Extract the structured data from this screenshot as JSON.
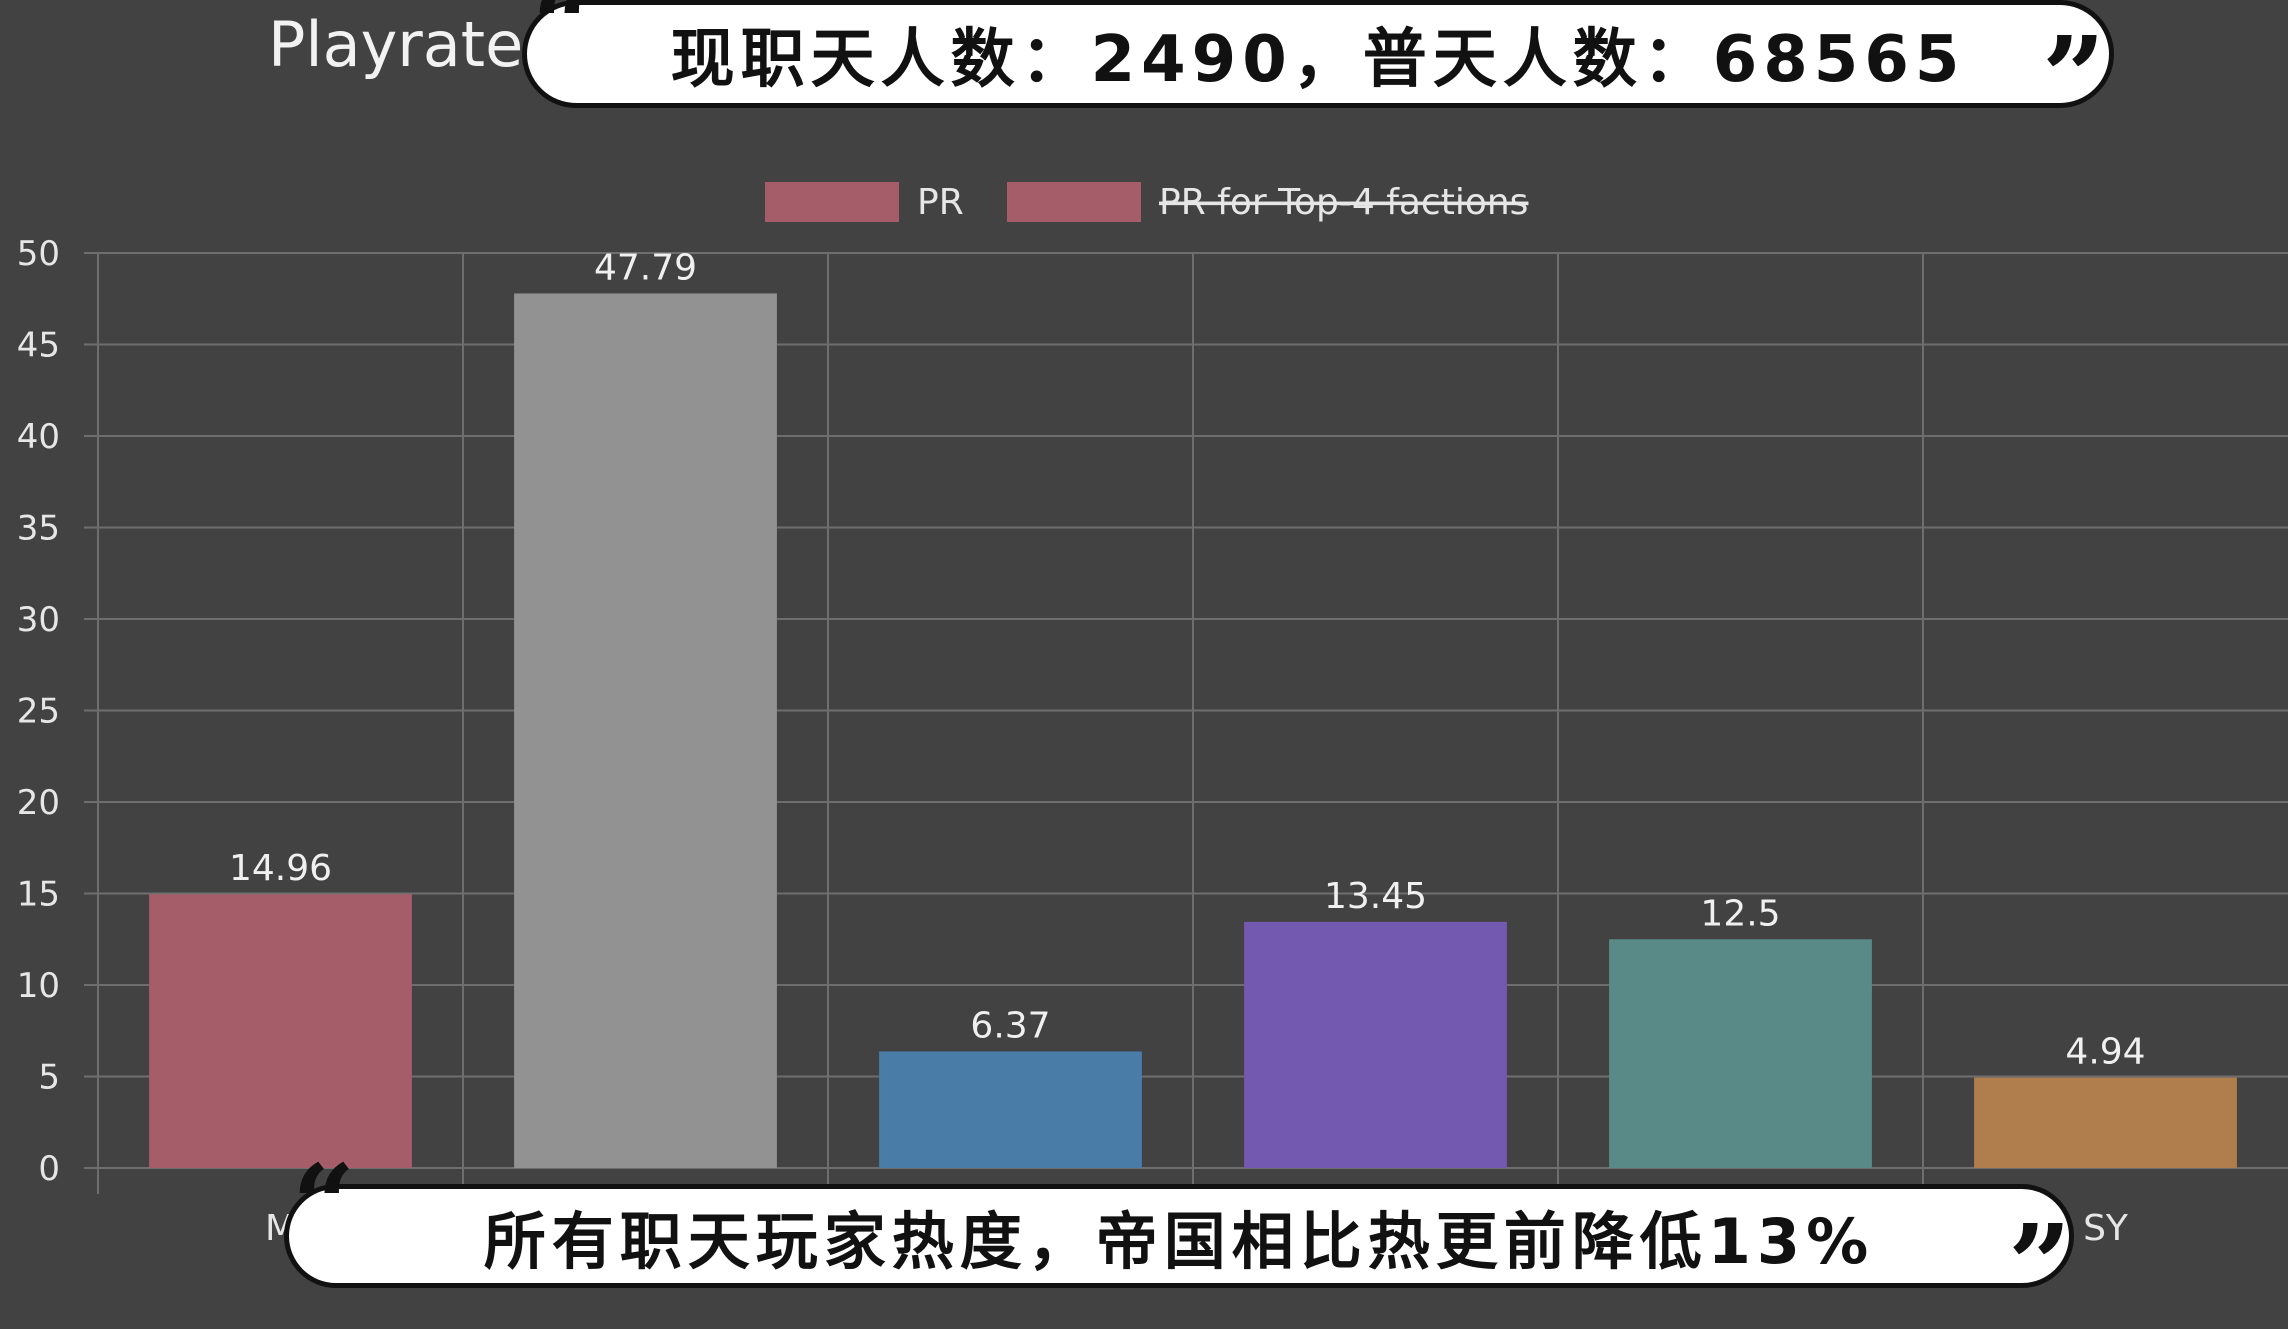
{
  "chart_data": {
    "type": "bar",
    "title": "Playrate",
    "categories": [
      "M",
      "",
      "",
      "",
      "",
      "SY"
    ],
    "values": [
      14.96,
      47.79,
      6.37,
      13.45,
      12.5,
      4.94
    ],
    "value_labels": [
      "14.96",
      "47.79",
      "6.37",
      "13.45",
      "12.5",
      "4.94"
    ],
    "bar_colors": [
      "#a65d6a",
      "#929292",
      "#4a7ca8",
      "#7459b0",
      "#5a8a88",
      "#b07e4c"
    ],
    "ylim": [
      0,
      50
    ],
    "yticks": [
      "0",
      "5",
      "10",
      "15",
      "20",
      "25",
      "30",
      "35",
      "40",
      "45",
      "50"
    ],
    "grid": true,
    "legend_position": "top-center",
    "legend": [
      {
        "label": "PR",
        "color": "#a65d6a",
        "hidden": false
      },
      {
        "label": "PR for Top-4 factions",
        "color": "#a65d6a",
        "hidden": true
      }
    ]
  },
  "overlays": {
    "top_caption": "现职天人数：2490，普天人数：68565",
    "bottom_caption": "所有职天玩家热度，帝国相比热更前降低13%",
    "quote_open": "“",
    "quote_close": "”"
  }
}
